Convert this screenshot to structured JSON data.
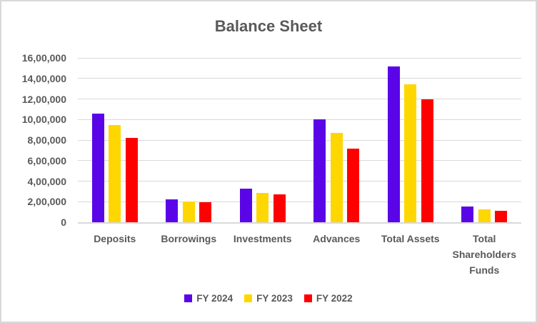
{
  "styles": {
    "background": "#FFFFFF",
    "border_color": "#D9D9D9",
    "grid_color": "#D9D9D9",
    "text_color": "#595959"
  },
  "chart_data": {
    "type": "bar",
    "title": "Balance Sheet",
    "xlabel": "",
    "ylabel": "",
    "grid": true,
    "legend_position": "bottom",
    "ylim": [
      0,
      1600000
    ],
    "ytick_step": 200000,
    "ytick_labels": [
      "0",
      "2,00,000",
      "4,00,000",
      "6,00,000",
      "8,00,000",
      "10,00,000",
      "12,00,000",
      "14,00,000",
      "16,00,000"
    ],
    "categories": [
      "Deposits",
      "Borrowings",
      "Investments",
      "Advances",
      "Total Assets",
      "Total Shareholders Funds"
    ],
    "series": [
      {
        "name": "FY 2024",
        "color": "#5A05E8",
        "values": [
          1060000,
          220000,
          330000,
          1000000,
          1520000,
          155000
        ]
      },
      {
        "name": "FY 2023",
        "color": "#FFD700",
        "values": [
          945000,
          200000,
          285000,
          870000,
          1345000,
          125000
        ]
      },
      {
        "name": "FY 2022",
        "color": "#FF0000",
        "values": [
          820000,
          195000,
          270000,
          720000,
          1195000,
          110000
        ]
      }
    ]
  }
}
